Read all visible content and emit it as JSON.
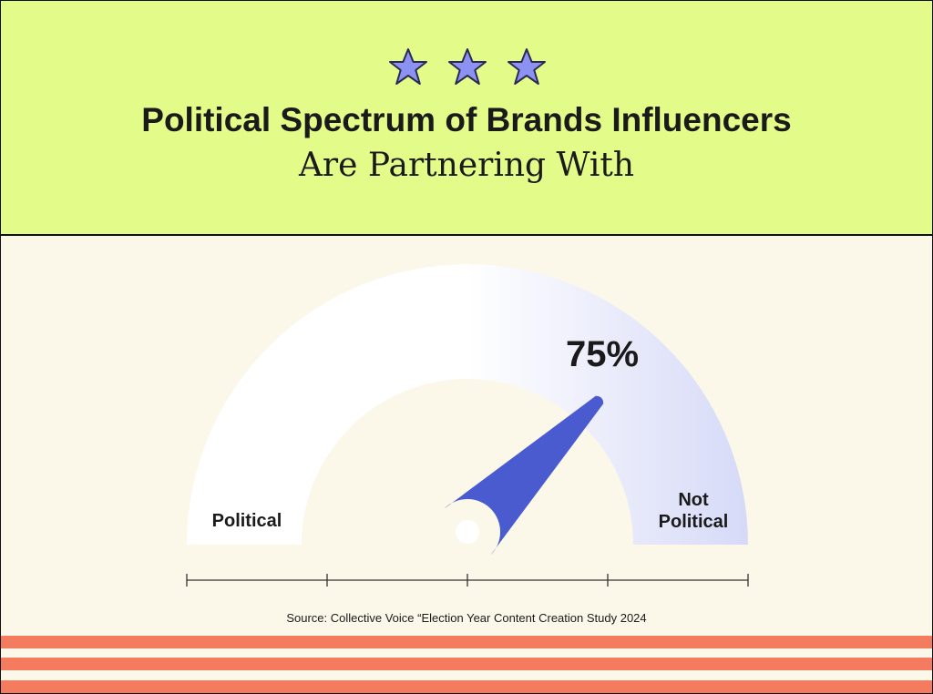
{
  "chart_data": {
    "type": "gauge",
    "title": "Political Spectrum of Brands Influencers",
    "subtitle": "Are Partnering With",
    "values": [
      75
    ],
    "value_labels": [
      "75%"
    ],
    "xlim": [
      0,
      100
    ],
    "xticks": [
      0,
      25,
      50,
      75,
      100
    ],
    "min_label": "Political",
    "max_label": "Not Political",
    "color": "#4a5bd0",
    "source": "Source: Collective Voice “Election Year Content Creation Study 2024"
  }
}
